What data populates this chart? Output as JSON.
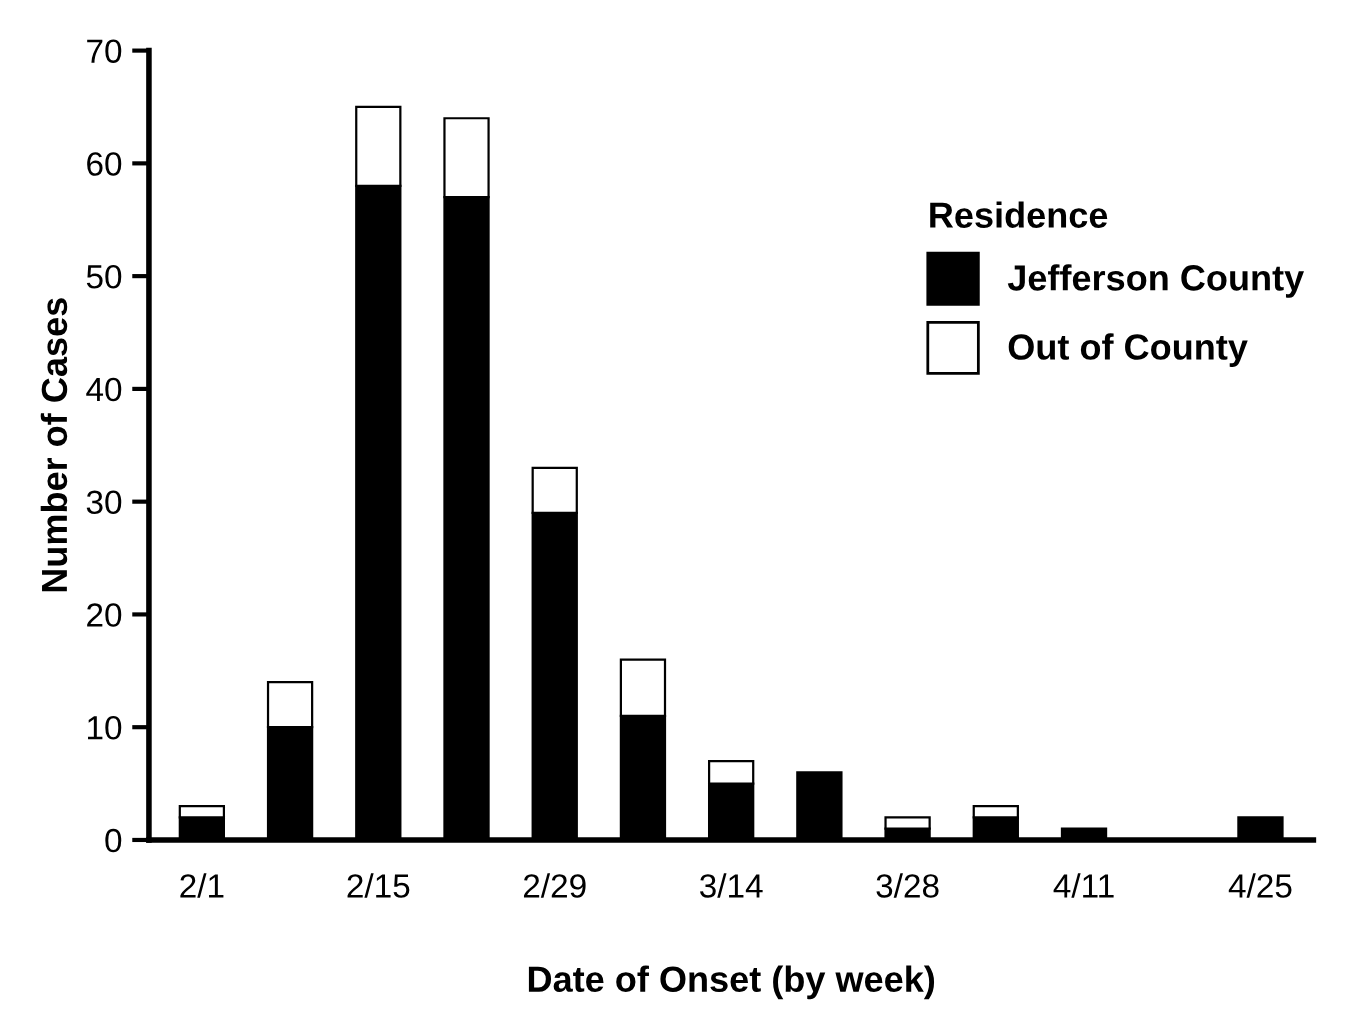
{
  "chart_data": {
    "type": "bar",
    "stacked": true,
    "xlabel": "Date of Onset (by week)",
    "ylabel": "Number of Cases",
    "legend_title": "Residence",
    "legend": "right",
    "categories": [
      "2/1",
      null,
      "2/15",
      null,
      "2/29",
      null,
      "3/14",
      null,
      "3/28",
      null,
      "4/11",
      null,
      "4/25"
    ],
    "series": [
      {
        "name": "Jefferson County",
        "color": "#000000",
        "values": [
          2,
          10,
          58,
          57,
          29,
          11,
          5,
          6,
          1,
          2,
          1,
          0,
          2
        ]
      },
      {
        "name": "Out of County",
        "color": "#ffffff",
        "values": [
          1,
          4,
          7,
          7,
          4,
          5,
          2,
          0,
          1,
          1,
          0,
          0,
          0
        ]
      }
    ],
    "ylim": [
      0,
      70
    ],
    "yticks": [
      0,
      10,
      20,
      30,
      40,
      50,
      60,
      70
    ],
    "grid": false
  }
}
